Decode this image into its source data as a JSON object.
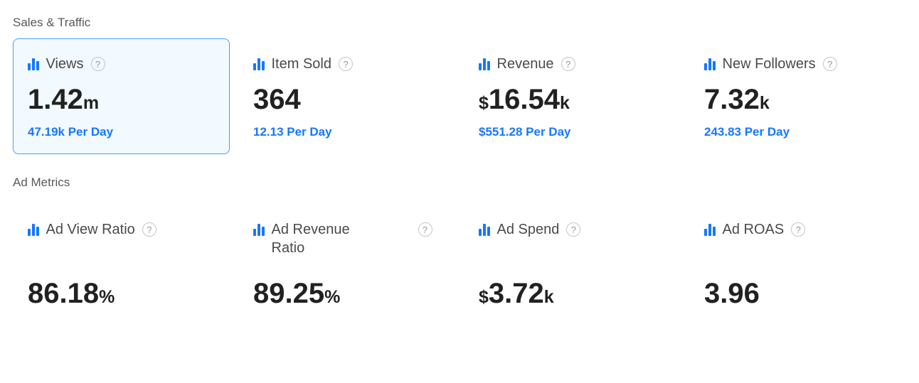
{
  "ui": {
    "help_glyph": "?"
  },
  "colors": {
    "accent_blue": "#1677ff",
    "selected_card_border": "#49a0f5",
    "selected_card_background": "#f2f9ff",
    "value_text": "#212121",
    "label_text": "#4a4a4a",
    "section_title_text": "#595959"
  },
  "sections": [
    {
      "title": "Sales & Traffic",
      "cards": [
        {
          "label": "Views",
          "prefix": "",
          "value": "1.42",
          "suffix": "m",
          "per_day": "47.19k Per Day",
          "selected": true
        },
        {
          "label": "Item Sold",
          "prefix": "",
          "value": "364",
          "suffix": "",
          "per_day": "12.13 Per Day"
        },
        {
          "label": "Revenue",
          "prefix": "$",
          "value": "16.54",
          "suffix": "k",
          "per_day": "$551.28 Per Day"
        },
        {
          "label": "New Followers",
          "prefix": "",
          "value": "7.32",
          "suffix": "k",
          "per_day": "243.83 Per Day"
        }
      ]
    },
    {
      "title": "Ad Metrics",
      "cards": [
        {
          "label": "Ad View Ratio",
          "prefix": "",
          "value": "86.18",
          "suffix": "%"
        },
        {
          "label": "Ad Revenue Ratio",
          "prefix": "",
          "value": "89.25",
          "suffix": "%"
        },
        {
          "label": "Ad Spend",
          "prefix": "$",
          "value": "3.72",
          "suffix": "k"
        },
        {
          "label": "Ad ROAS",
          "prefix": "",
          "value": "3.96",
          "suffix": ""
        }
      ]
    }
  ]
}
